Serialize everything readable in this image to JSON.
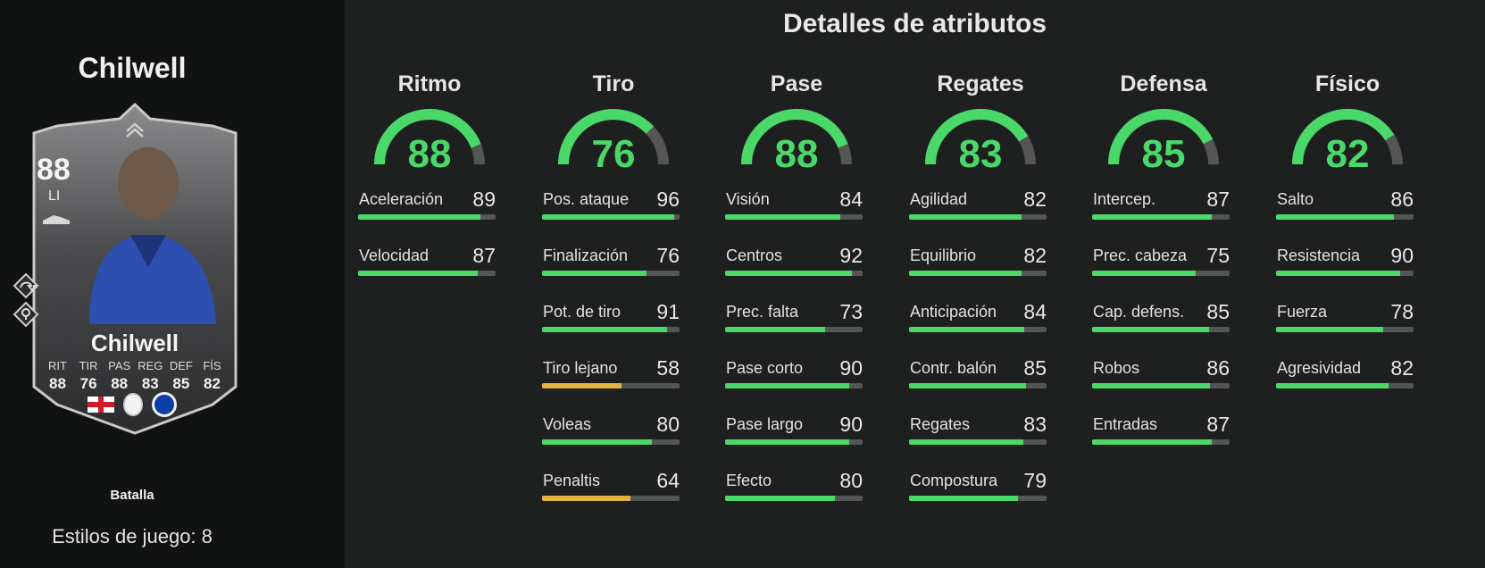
{
  "player": {
    "name": "Chilwell",
    "card": {
      "rating": "88",
      "position": "LI",
      "name": "Chilwell",
      "stat_labels": [
        "RIT",
        "TIR",
        "PAS",
        "REG",
        "DEF",
        "FÍS"
      ],
      "stat_values": [
        "88",
        "76",
        "88",
        "83",
        "85",
        "82"
      ],
      "boot_icon": "boot-icon",
      "playstyle_icons": [
        "playstyle-rebound-icon",
        "playstyle-location-icon"
      ]
    },
    "chemistry_style": "Batalla",
    "playstyles_text": "Estilos de juego: 8"
  },
  "section_title": "Detalles de atributos",
  "colors": {
    "high": "#4ad869",
    "mid": "#e3b23c",
    "track": "#545555"
  },
  "categories": [
    {
      "title": "Ritmo",
      "value": 88,
      "stats": [
        {
          "label": "Aceleración",
          "value": 89
        },
        {
          "label": "Velocidad",
          "value": 87
        }
      ]
    },
    {
      "title": "Tiro",
      "value": 76,
      "stats": [
        {
          "label": "Pos. ataque",
          "value": 96
        },
        {
          "label": "Finalización",
          "value": 76
        },
        {
          "label": "Pot. de tiro",
          "value": 91
        },
        {
          "label": "Tiro lejano",
          "value": 58
        },
        {
          "label": "Voleas",
          "value": 80
        },
        {
          "label": "Penaltis",
          "value": 64
        }
      ]
    },
    {
      "title": "Pase",
      "value": 88,
      "stats": [
        {
          "label": "Visión",
          "value": 84
        },
        {
          "label": "Centros",
          "value": 92
        },
        {
          "label": "Prec. falta",
          "value": 73
        },
        {
          "label": "Pase corto",
          "value": 90
        },
        {
          "label": "Pase largo",
          "value": 90
        },
        {
          "label": "Efecto",
          "value": 80
        }
      ]
    },
    {
      "title": "Regates",
      "value": 83,
      "stats": [
        {
          "label": "Agilidad",
          "value": 82
        },
        {
          "label": "Equilibrio",
          "value": 82
        },
        {
          "label": "Anticipación",
          "value": 84
        },
        {
          "label": "Contr. balón",
          "value": 85
        },
        {
          "label": "Regates",
          "value": 83
        },
        {
          "label": "Compostura",
          "value": 79
        }
      ]
    },
    {
      "title": "Defensa",
      "value": 85,
      "stats": [
        {
          "label": "Intercep.",
          "value": 87
        },
        {
          "label": "Prec. cabeza",
          "value": 75
        },
        {
          "label": "Cap. defens.",
          "value": 85
        },
        {
          "label": "Robos",
          "value": 86
        },
        {
          "label": "Entradas",
          "value": 87
        }
      ]
    },
    {
      "title": "Físico",
      "value": 82,
      "stats": [
        {
          "label": "Salto",
          "value": 86
        },
        {
          "label": "Resistencia",
          "value": 90
        },
        {
          "label": "Fuerza",
          "value": 78
        },
        {
          "label": "Agresividad",
          "value": 82
        }
      ]
    }
  ]
}
